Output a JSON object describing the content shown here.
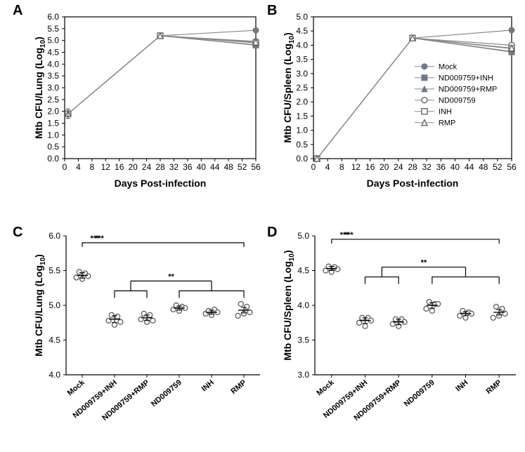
{
  "panel_letters": {
    "A": "A",
    "B": "B",
    "C": "C",
    "D": "D"
  },
  "colors": {
    "bg": "#ffffff",
    "line": "#888888",
    "marker_fill": "#6c7a8a",
    "marker_stroke": "#666666",
    "axis": "#000000"
  },
  "legend": {
    "items": [
      {
        "label": "Mock",
        "shape": "circle",
        "filled": true
      },
      {
        "label": "ND009759+INH",
        "shape": "square",
        "filled": true
      },
      {
        "label": "ND009759+RMP",
        "shape": "triangle",
        "filled": true
      },
      {
        "label": "ND009759",
        "shape": "circle",
        "filled": false
      },
      {
        "label": "INH",
        "shape": "square",
        "filled": false
      },
      {
        "label": "RMP",
        "shape": "triangle",
        "filled": false
      }
    ]
  },
  "panelA": {
    "type": "line",
    "xlabel": "Days Post-infection",
    "ylabel_main": "Mtb CFU/Lung (Log",
    "ylabel_sub": "10",
    "ylabel_close": ")",
    "xlim": [
      0,
      56
    ],
    "xtick_step": 4,
    "ylim": [
      0,
      6
    ],
    "ytick_step": 0.5,
    "error_x": 1,
    "error_y": 1.9,
    "error_h": 0.2,
    "series": [
      {
        "key": "Mock",
        "pts": [
          [
            1,
            1.9
          ],
          [
            28,
            5.2
          ],
          [
            56,
            5.43
          ]
        ],
        "shape": "circle",
        "filled": true
      },
      {
        "key": "ND009759+INH",
        "pts": [
          [
            1,
            1.9
          ],
          [
            28,
            5.2
          ],
          [
            56,
            4.8
          ]
        ],
        "shape": "square",
        "filled": true
      },
      {
        "key": "ND009759+RMP",
        "pts": [
          [
            1,
            1.9
          ],
          [
            28,
            5.2
          ],
          [
            56,
            4.82
          ]
        ],
        "shape": "triangle",
        "filled": true
      },
      {
        "key": "ND009759",
        "pts": [
          [
            1,
            1.9
          ],
          [
            28,
            5.2
          ],
          [
            56,
            4.96
          ]
        ],
        "shape": "circle",
        "filled": false
      },
      {
        "key": "INH",
        "pts": [
          [
            1,
            1.9
          ],
          [
            28,
            5.2
          ],
          [
            56,
            4.9
          ]
        ],
        "shape": "square",
        "filled": false
      },
      {
        "key": "RMP",
        "pts": [
          [
            1,
            1.9
          ],
          [
            28,
            5.2
          ],
          [
            56,
            4.93
          ]
        ],
        "shape": "triangle",
        "filled": false
      }
    ]
  },
  "panelB": {
    "type": "line",
    "xlabel": "Days Post-infection",
    "ylabel_main": "Mtb CFU/Spleen (Log",
    "ylabel_sub": "10",
    "ylabel_close": ")",
    "xlim": [
      0,
      56
    ],
    "xtick_step": 4,
    "ylim": [
      0,
      5
    ],
    "ytick_step": 0.5,
    "series": [
      {
        "key": "Mock",
        "pts": [
          [
            1,
            0
          ],
          [
            28,
            4.25
          ],
          [
            56,
            4.53
          ]
        ],
        "shape": "circle",
        "filled": true
      },
      {
        "key": "ND009759+INH",
        "pts": [
          [
            1,
            0
          ],
          [
            28,
            4.25
          ],
          [
            56,
            3.78
          ]
        ],
        "shape": "square",
        "filled": true
      },
      {
        "key": "ND009759+RMP",
        "pts": [
          [
            1,
            0
          ],
          [
            28,
            4.25
          ],
          [
            56,
            3.76
          ]
        ],
        "shape": "triangle",
        "filled": true
      },
      {
        "key": "ND009759",
        "pts": [
          [
            1,
            0
          ],
          [
            28,
            4.25
          ],
          [
            56,
            4.0
          ]
        ],
        "shape": "circle",
        "filled": false
      },
      {
        "key": "INH",
        "pts": [
          [
            1,
            0
          ],
          [
            28,
            4.25
          ],
          [
            56,
            3.88
          ]
        ],
        "shape": "square",
        "filled": false
      },
      {
        "key": "RMP",
        "pts": [
          [
            1,
            0
          ],
          [
            28,
            4.25
          ],
          [
            56,
            3.9
          ]
        ],
        "shape": "triangle",
        "filled": false
      }
    ]
  },
  "scatterCats": [
    "Mock",
    "ND009759+INH",
    "ND009759+RMP",
    "ND009759",
    "INH",
    "RMP"
  ],
  "panelC": {
    "type": "scatter-categorical",
    "ylabel_main": "Mtb CFU/Lung (Log",
    "ylabel_sub": "10",
    "ylabel_close": ")",
    "ylim": [
      4.0,
      6.0
    ],
    "ytick_step": 0.5,
    "groups": [
      {
        "name": "Mock",
        "mean": 5.43,
        "err": 0.04,
        "pts": [
          5.4,
          5.48,
          5.38,
          5.46,
          5.42
        ]
      },
      {
        "name": "ND009759+INH",
        "mean": 4.8,
        "err": 0.05,
        "pts": [
          4.78,
          4.86,
          4.72,
          4.84,
          4.76
        ]
      },
      {
        "name": "ND009759+RMP",
        "mean": 4.82,
        "err": 0.04,
        "pts": [
          4.8,
          4.88,
          4.76,
          4.86,
          4.78
        ]
      },
      {
        "name": "ND009759",
        "mean": 4.96,
        "err": 0.03,
        "pts": [
          4.94,
          5.0,
          4.92,
          4.98,
          4.96
        ]
      },
      {
        "name": "INH",
        "mean": 4.9,
        "err": 0.03,
        "pts": [
          4.88,
          4.92,
          4.86,
          4.94,
          4.9
        ]
      },
      {
        "name": "RMP",
        "mean": 4.93,
        "err": 0.04,
        "pts": [
          4.85,
          5.02,
          4.88,
          4.98,
          4.9
        ]
      }
    ],
    "sig1": {
      "label": "***",
      "y": 5.9,
      "from": 0,
      "to": 5
    },
    "sig2": {
      "label": "**",
      "y": 5.35,
      "from_pair": [
        1,
        2
      ],
      "to_pair": [
        3,
        4,
        5
      ]
    }
  },
  "panelD": {
    "type": "scatter-categorical",
    "ylabel_main": "Mtb CFU/Spleen (Log",
    "ylabel_sub": "10",
    "ylabel_close": ")",
    "ylim": [
      3.0,
      5.0
    ],
    "ytick_step": 0.5,
    "groups": [
      {
        "name": "Mock",
        "mean": 4.53,
        "err": 0.03,
        "pts": [
          4.5,
          4.56,
          4.48,
          4.55,
          4.52
        ]
      },
      {
        "name": "ND009759+INH",
        "mean": 3.78,
        "err": 0.04,
        "pts": [
          3.75,
          3.82,
          3.7,
          3.82,
          3.78
        ]
      },
      {
        "name": "ND009759+RMP",
        "mean": 3.76,
        "err": 0.04,
        "pts": [
          3.73,
          3.8,
          3.7,
          3.8,
          3.76
        ]
      },
      {
        "name": "ND009759",
        "mean": 4.0,
        "err": 0.04,
        "pts": [
          3.95,
          4.05,
          3.92,
          4.02,
          4.02
        ]
      },
      {
        "name": "INH",
        "mean": 3.88,
        "err": 0.03,
        "pts": [
          3.85,
          3.92,
          3.82,
          3.9,
          3.88
        ]
      },
      {
        "name": "RMP",
        "mean": 3.9,
        "err": 0.04,
        "pts": [
          3.82,
          3.98,
          3.85,
          3.95,
          3.88
        ]
      }
    ],
    "sig1": {
      "label": "***",
      "y": 4.95,
      "from": 0,
      "to": 5
    },
    "sig2": {
      "label": "**",
      "y": 4.55,
      "from_pair": [
        1,
        2
      ],
      "to_pair": [
        3,
        4,
        5
      ]
    }
  }
}
